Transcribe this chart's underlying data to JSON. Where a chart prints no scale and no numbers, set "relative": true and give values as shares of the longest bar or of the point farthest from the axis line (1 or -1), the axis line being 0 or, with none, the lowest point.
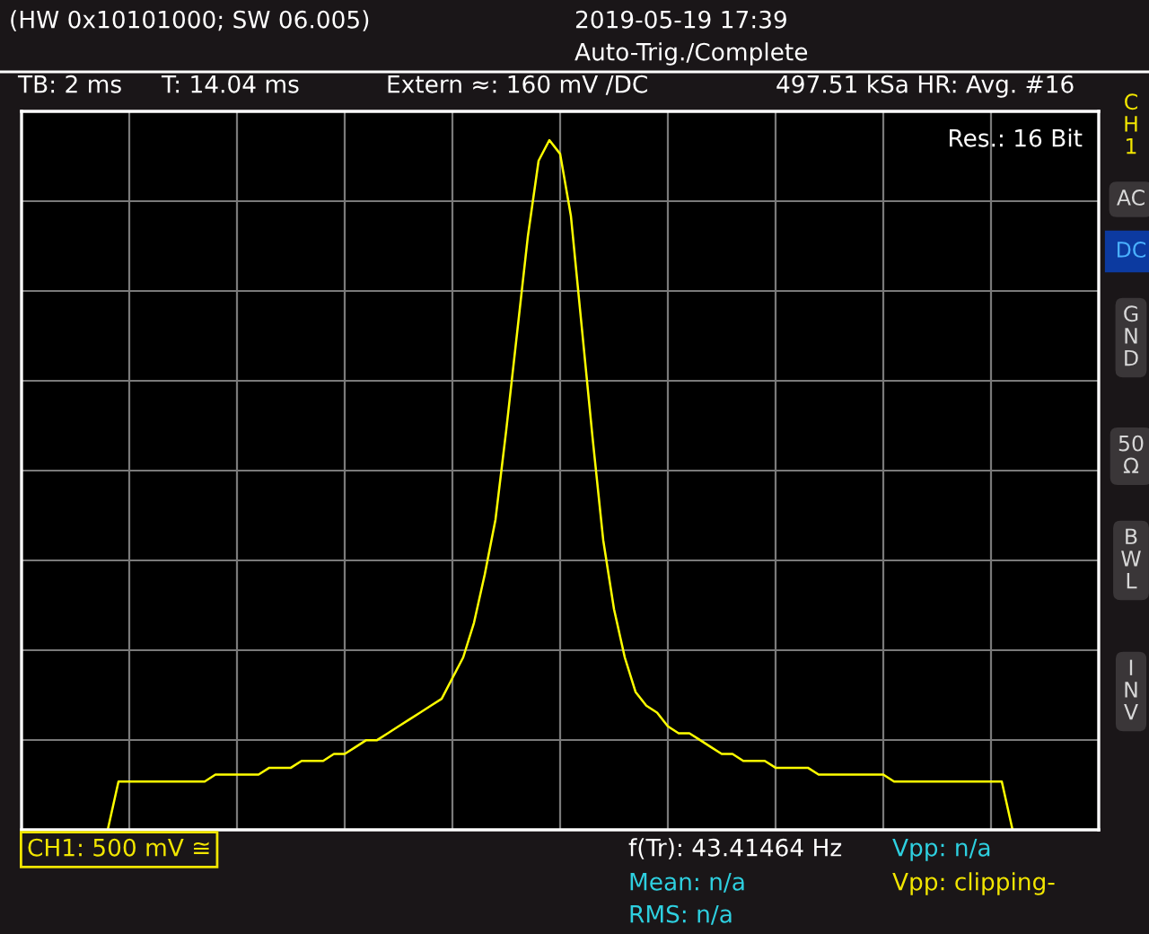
{
  "chart_data": {
    "type": "line",
    "relative": true,
    "grid": true,
    "marker": "none",
    "line_style": "solid",
    "categories": [
      null,
      null,
      null,
      null,
      null,
      null,
      null,
      null,
      null,
      null,
      null,
      null,
      null,
      null,
      null,
      null,
      null,
      null,
      null,
      null,
      null,
      null,
      null,
      null,
      null,
      null,
      null,
      null,
      null,
      null,
      null,
      null,
      null,
      null,
      null,
      null,
      null,
      null,
      null,
      null,
      null,
      null,
      null,
      null,
      null,
      null,
      null,
      null,
      null,
      null,
      null,
      null,
      null,
      null,
      null,
      null,
      null,
      null,
      null,
      null,
      null,
      null,
      null,
      null,
      null,
      null,
      null,
      null,
      null,
      null,
      null,
      null,
      null,
      null,
      null,
      null,
      null,
      null,
      null,
      null,
      null,
      null,
      null,
      null,
      null,
      null,
      null,
      null,
      null,
      null,
      null,
      null,
      null,
      null,
      null,
      null,
      null,
      null,
      null,
      null,
      null
    ],
    "series": [
      {
        "color": "#ffff00",
        "values": [
          null,
          null,
          null,
          null,
          null,
          null,
          null,
          null,
          0,
          0.07,
          0.07,
          0.07,
          0.07,
          0.07,
          0.07,
          0.07,
          0.07,
          0.07,
          0.08,
          0.08,
          0.08,
          0.08,
          0.08,
          0.09,
          0.09,
          0.09,
          0.1,
          0.1,
          0.1,
          0.11,
          0.11,
          0.12,
          0.13,
          0.13,
          0.14,
          0.15,
          0.16,
          0.17,
          0.18,
          0.19,
          0.22,
          0.25,
          0.3,
          0.37,
          0.45,
          0.58,
          0.72,
          0.86,
          0.97,
          1.0,
          0.98,
          0.89,
          0.73,
          0.57,
          0.42,
          0.32,
          0.25,
          0.2,
          0.18,
          0.17,
          0.15,
          0.14,
          0.14,
          0.13,
          0.12,
          0.11,
          0.11,
          0.1,
          0.1,
          0.1,
          0.09,
          0.09,
          0.09,
          0.09,
          0.08,
          0.08,
          0.08,
          0.08,
          0.08,
          0.08,
          0.08,
          0.07,
          0.07,
          0.07,
          0.07,
          0.07,
          0.07,
          0.07,
          0.07,
          0.07,
          0.07,
          0.07,
          0,
          null,
          null,
          null,
          null,
          null,
          null,
          null,
          null
        ]
      }
    ],
    "annotations": [
      "(HW 0x10101000; SW 06.005)",
      "2019-05-19 17:39",
      "Auto-Trig./Complete",
      "TB: 2 ms",
      "T: 14.04 ms",
      "Extern ≈: 160 mV /DC",
      "497.51 kSa HR: Avg. #16",
      "Res.: 16 Bit",
      "CH1: 500 mV ≅",
      "f(Tr): 43.41464 Hz",
      "Mean: n/a",
      "RMS: n/a",
      "Vpp: n/a",
      "Vpp: clipping-",
      "CH1",
      "AC",
      "DC",
      "GND",
      "50 Ω",
      "BWL",
      "INV"
    ]
  }
}
